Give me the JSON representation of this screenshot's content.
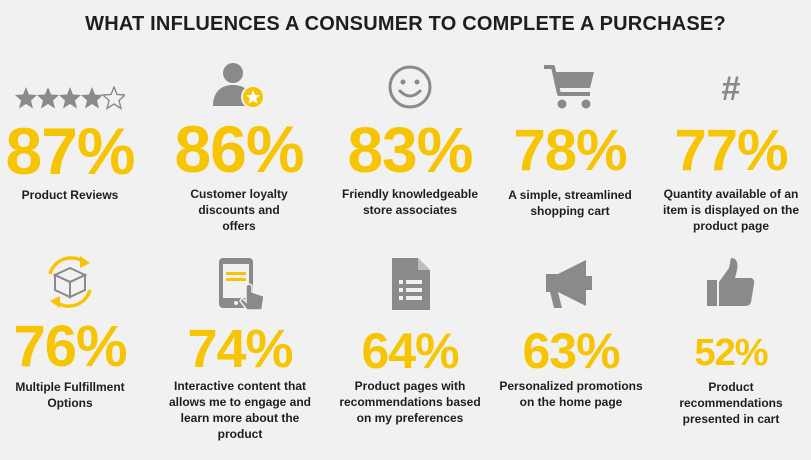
{
  "title": "WHAT INFLUENCES A CONSUMER TO COMPLETE A PURCHASE?",
  "colors": {
    "accent": "#f6c500",
    "icon_gray": "#8a8a8a",
    "text": "#1e1e1e",
    "background": "#f1f1f1"
  },
  "stats": [
    {
      "value": "87%",
      "label": "Product Reviews",
      "icon": "star-rating-icon",
      "rating_filled": 4,
      "rating_total": 5
    },
    {
      "value": "86%",
      "label": "Customer loyalty discounts and offers",
      "icon": "user-star-icon"
    },
    {
      "value": "83%",
      "label": "Friendly knowledgeable store associates",
      "icon": "smiley-icon"
    },
    {
      "value": "78%",
      "label": "A simple, streamlined shopping cart",
      "icon": "shopping-cart-icon"
    },
    {
      "value": "77%",
      "label": "Quantity available of an item is displayed on the product page",
      "icon": "hashtag-icon",
      "icon_glyph": "#"
    },
    {
      "value": "76%",
      "label": "Multiple Fulfillment Options",
      "icon": "package-cycle-icon"
    },
    {
      "value": "74%",
      "label": "Interactive content that allows me to engage and learn more about the product",
      "icon": "tablet-touch-icon"
    },
    {
      "value": "64%",
      "label": "Product pages with recommendations based on my preferences",
      "icon": "document-list-icon"
    },
    {
      "value": "63%",
      "label": "Personalized promotions on the home page",
      "icon": "megaphone-icon"
    },
    {
      "value": "52%",
      "label": "Product recommendations presented in cart",
      "icon": "thumbs-up-icon"
    }
  ]
}
